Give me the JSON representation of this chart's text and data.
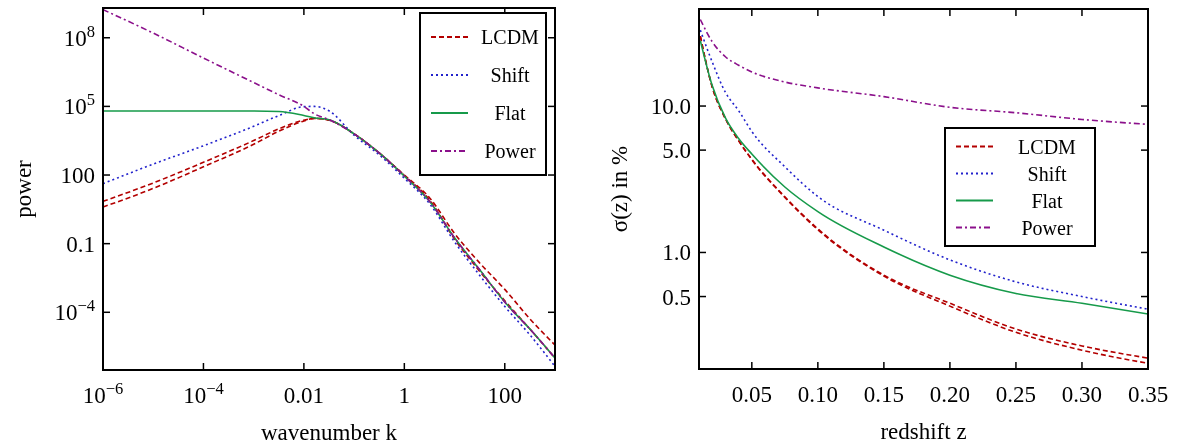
{
  "chart_data": [
    {
      "type": "line",
      "xlabel": "wavenumber k",
      "ylabel": "power",
      "log": "xy",
      "legend": "top right",
      "grid": false,
      "xlim": [
        1e-06,
        1000
      ],
      "ylim": [
        3e-07,
        2000000000.0
      ],
      "xticks": [
        {
          "value": 1e-06,
          "label": "10$^{−6}$"
        },
        {
          "value": 0.0001,
          "label": "10$^{−4}$"
        },
        0.01,
        1,
        100
      ],
      "yticks": [
        {
          "value": 0.0001,
          "label": "10$^{−4}$"
        },
        0.1,
        100,
        {
          "value": 100000.0,
          "label": "10$^{5}$"
        },
        {
          "value": 100000000.0,
          "label": "10$^{8}$"
        }
      ],
      "x": [
        1e-06,
        1e-05,
        0.0001,
        0.001,
        0.0032,
        0.01,
        0.016,
        0.032,
        0.1,
        0.32,
        1,
        3.2,
        10,
        32,
        100,
        320,
        1000
      ],
      "series": [
        {
          "name": "LCDM",
          "color": "#b30000",
          "line_style": "dashed",
          "values": [
            7,
            45,
            360,
            3200,
            10500,
            25000,
            30000,
            25000,
            6300,
            900,
            100,
            10,
            0.28,
            0.014,
            0.001,
            5e-05,
            3.7e-06
          ]
        },
        {
          "color": "#b30000",
          "line_style": "dashed",
          "values": [
            4,
            26,
            230,
            2200,
            8300,
            23000,
            30000,
            25000,
            6300,
            900,
            95,
            8,
            0.16,
            0.006,
            0.00032,
            1.8e-05,
            1e-06
          ]
        },
        {
          "name": "Shift",
          "color": "#2222cc",
          "line_style": "dotted",
          "values": [
            42,
            300,
            1900,
            13500,
            40000,
            98000,
            100000,
            63000,
            5500,
            750,
            72,
            5.5,
            0.12,
            0.004,
            0.00018,
            1e-05,
            4.3e-07
          ]
        },
        {
          "name": "Flat",
          "color": "#169a4a",
          "line_style": "solid",
          "values": [
            63000,
            63000,
            63000,
            63000,
            60000,
            40000,
            32000,
            26000,
            6300,
            900,
            90,
            7,
            0.18,
            0.007,
            0.00028,
            1.8e-05,
            1e-06
          ]
        },
        {
          "name": "Power",
          "color": "#8b108b",
          "line_style": "dashdot",
          "values": [
            1700000000.0,
            160000000.0,
            13000000.0,
            1100000.0,
            320000.0,
            100000,
            48000,
            26000,
            6300,
            900,
            90,
            7,
            0.18,
            0.007,
            0.00028,
            1.8e-05,
            1e-06
          ]
        }
      ]
    },
    {
      "type": "line",
      "xlabel": "redshift z",
      "ylabel": "σ(z) in %",
      "log": "y",
      "legend": "top right",
      "grid": false,
      "xlim": [
        0.01,
        0.35
      ],
      "ylim": [
        0.16,
        46
      ],
      "xticks": [
        {
          "value": 0.05,
          "label": "0.05"
        },
        {
          "value": 0.1,
          "label": "0.10"
        },
        {
          "value": 0.15,
          "label": "0.15"
        },
        {
          "value": 0.2,
          "label": "0.20"
        },
        {
          "value": 0.25,
          "label": "0.25"
        },
        {
          "value": 0.3,
          "label": "0.30"
        },
        {
          "value": 0.35,
          "label": "0.35"
        }
      ],
      "yticks": [
        {
          "value": 0.5,
          "label": "0.5"
        },
        {
          "value": 1,
          "label": "1.0"
        },
        {
          "value": 5,
          "label": "5.0"
        },
        {
          "value": 10,
          "label": "10.0"
        }
      ],
      "x": [
        0.011,
        0.02,
        0.03,
        0.04,
        0.05,
        0.075,
        0.1,
        0.15,
        0.2,
        0.25,
        0.3,
        0.35
      ],
      "series": [
        {
          "name": "LCDM",
          "color": "#b30000",
          "line_style": "dashed",
          "values": [
            30,
            13.5,
            8.2,
            5.8,
            4.33,
            2.4,
            1.45,
            0.7,
            0.45,
            0.3,
            0.23,
            0.19
          ]
        },
        {
          "color": "#b30000",
          "line_style": "dashed",
          "values": [
            30,
            13.5,
            8.2,
            5.8,
            4.3,
            2.38,
            1.43,
            0.69,
            0.43,
            0.285,
            0.215,
            0.175
          ]
        },
        {
          "name": "Shift",
          "color": "#2222cc",
          "line_style": "dotted",
          "values": [
            33,
            20,
            12.4,
            9.3,
            6.7,
            3.85,
            2.41,
            1.42,
            0.89,
            0.63,
            0.5,
            0.41
          ]
        },
        {
          "name": "Flat",
          "color": "#169a4a",
          "line_style": "solid",
          "values": [
            28,
            13.8,
            8.3,
            6,
            4.7,
            2.8,
            1.9,
            1.09,
            0.7,
            0.525,
            0.45,
            0.38
          ]
        },
        {
          "name": "Power",
          "color": "#8b108b",
          "line_style": "dashdot",
          "values": [
            39,
            27.5,
            21.7,
            19,
            17.1,
            14.6,
            13.3,
            11.6,
            9.8,
            9,
            8.1,
            7.5
          ]
        }
      ]
    }
  ]
}
